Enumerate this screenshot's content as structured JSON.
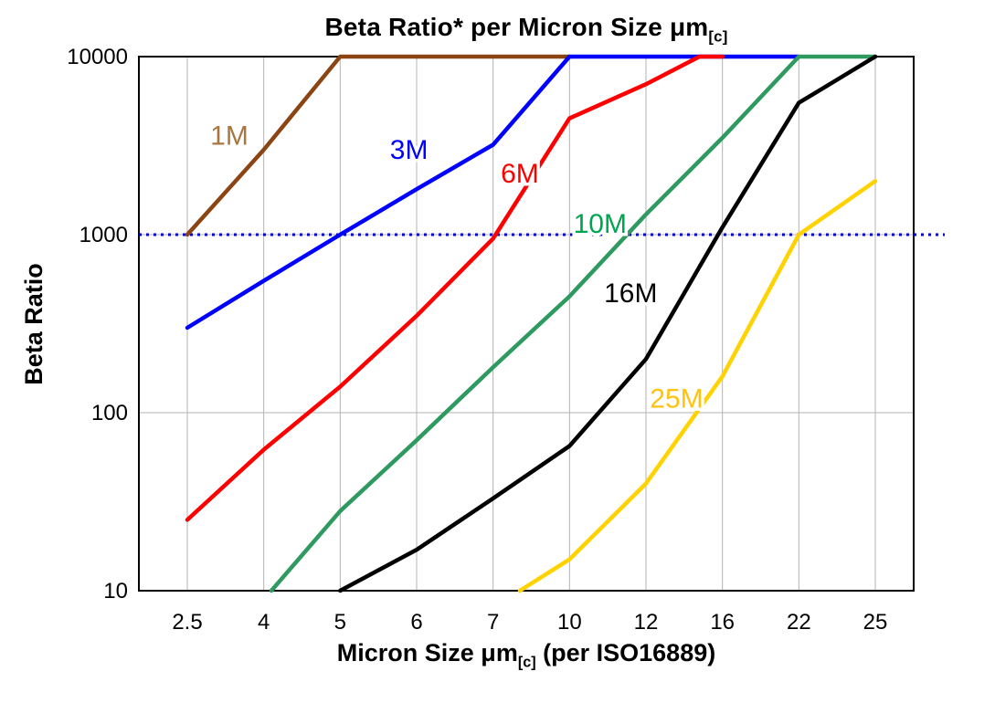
{
  "title": {
    "pre": "Beta Ratio* per Micron Size ",
    "mu": "μm",
    "sub": "[c]"
  },
  "y_axis": {
    "label": "Beta Ratio",
    "ticks": [
      {
        "value": 10,
        "label": "10"
      },
      {
        "value": 100,
        "label": "100"
      },
      {
        "value": 1000,
        "label": "1000"
      },
      {
        "value": 10000,
        "label": "10000"
      }
    ]
  },
  "x_axis": {
    "pre": "Micron Size ",
    "mu": "μm",
    "sub": "[c]",
    "post": " (per ISO16889)"
  },
  "chart_data": {
    "type": "line",
    "title": "Beta Ratio* per Micron Size μm[c]",
    "xlabel": "Micron Size μm[c] (per ISO16889)",
    "ylabel": "Beta Ratio",
    "x_scale": "categorical",
    "y_scale": "log",
    "grid": true,
    "legend_position": "inline-labels",
    "categories": [
      "2.5",
      "4",
      "5",
      "6",
      "7",
      "10",
      "12",
      "16",
      "22",
      "25"
    ],
    "ylim": [
      10,
      10000
    ],
    "reference_line": {
      "y": 1000,
      "style": "dotted",
      "color": "#0000CC",
      "width": 3
    },
    "series": [
      {
        "name": "1M",
        "color": "#8B4513",
        "label_color": "#A8763E",
        "points": [
          [
            0,
            1000
          ],
          [
            1,
            3000
          ],
          [
            2,
            10000
          ],
          [
            5,
            10000
          ]
        ],
        "label_at": [
          0.55,
          3600
        ]
      },
      {
        "name": "3M",
        "color": "#0000FF",
        "label_color": "#0000FF",
        "points": [
          [
            0,
            300
          ],
          [
            1,
            550
          ],
          [
            2,
            1000
          ],
          [
            3,
            1800
          ],
          [
            4,
            3200
          ],
          [
            5,
            10000
          ],
          [
            8,
            10000
          ]
        ],
        "label_at": [
          2.9,
          3000
        ]
      },
      {
        "name": "6M",
        "color": "#FF0000",
        "label_color": "#FF0000",
        "points": [
          [
            0,
            25
          ],
          [
            1,
            62
          ],
          [
            2,
            140
          ],
          [
            3,
            350
          ],
          [
            4,
            950
          ],
          [
            5,
            4500
          ],
          [
            6,
            7000
          ],
          [
            6.7,
            10000
          ],
          [
            7,
            10000
          ]
        ],
        "label_at": [
          4.35,
          2200
        ]
      },
      {
        "name": "10M",
        "color": "#2E9A60",
        "label_color": "#00A550",
        "points": [
          [
            1.1,
            10
          ],
          [
            2,
            28
          ],
          [
            3,
            70
          ],
          [
            4,
            180
          ],
          [
            5,
            450
          ],
          [
            6,
            1300
          ],
          [
            7,
            3500
          ],
          [
            8,
            10000
          ],
          [
            9,
            10000
          ]
        ],
        "label_at": [
          5.4,
          1150
        ]
      },
      {
        "name": "16M",
        "color": "#000000",
        "label_color": "#000000",
        "points": [
          [
            2,
            10
          ],
          [
            3,
            17
          ],
          [
            4,
            33
          ],
          [
            5,
            65
          ],
          [
            6,
            200
          ],
          [
            7,
            1100
          ],
          [
            8,
            5500
          ],
          [
            9,
            10000
          ]
        ],
        "label_at": [
          5.8,
          470
        ]
      },
      {
        "name": "25M",
        "color": "#FFD200",
        "label_color": "#FFC20E",
        "points": [
          [
            4.35,
            10
          ],
          [
            5,
            15
          ],
          [
            6,
            40
          ],
          [
            7,
            160
          ],
          [
            8,
            1000
          ],
          [
            9,
            2000
          ]
        ],
        "label_at": [
          6.4,
          120
        ]
      }
    ]
  }
}
